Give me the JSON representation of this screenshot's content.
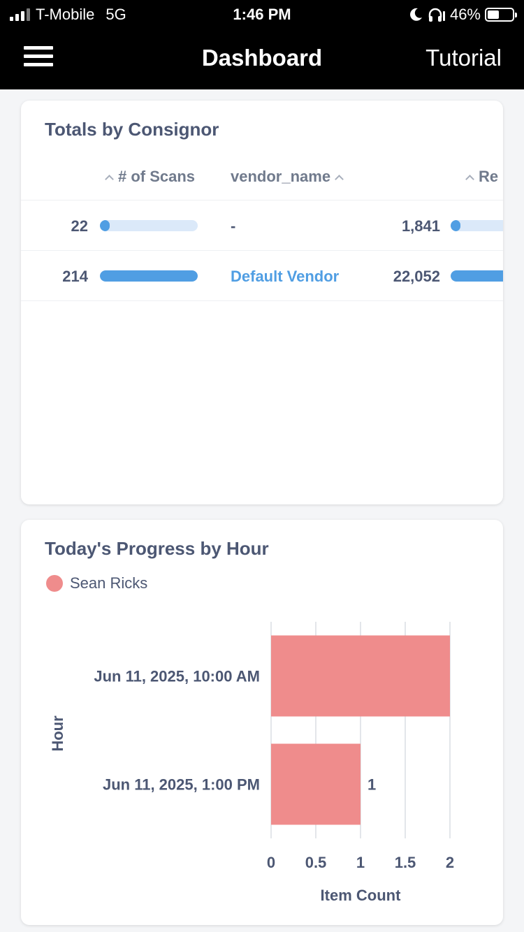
{
  "status_bar": {
    "carrier": "T-Mobile",
    "network": "5G",
    "time": "1:46 PM",
    "battery": "46%",
    "battery_level": 0.46
  },
  "navbar": {
    "title": "Dashboard",
    "right_label": "Tutorial"
  },
  "totals_card": {
    "title": "Totals by Consignor",
    "columns": [
      "# of Scans",
      "vendor_name",
      "Re"
    ],
    "rows": [
      {
        "scans": "22",
        "scans_fraction": 0.07,
        "vendor": "-",
        "third": "1,841",
        "third_fraction": 0.08
      },
      {
        "scans": "214",
        "scans_fraction": 1.0,
        "vendor": "Default Vendor",
        "third": "22,052",
        "third_fraction": 1.0
      }
    ]
  },
  "progress_card": {
    "title": "Today's Progress by Hour",
    "legend": "Sean Ricks",
    "colors": {
      "series": "#ef8c8c"
    }
  },
  "chart_data": {
    "type": "bar",
    "orientation": "horizontal",
    "categories": [
      "Jun 11, 2025, 10:00 AM",
      "Jun 11, 2025, 1:00 PM"
    ],
    "series": [
      {
        "name": "Sean Ricks",
        "values": [
          2,
          1
        ]
      }
    ],
    "data_labels": [
      "",
      "1"
    ],
    "xlabel": "Item Count",
    "ylabel": "Hour",
    "xlim": [
      0,
      2
    ],
    "x_ticks": [
      "0",
      "0.5",
      "1",
      "1.5",
      "2"
    ],
    "grid": true
  }
}
